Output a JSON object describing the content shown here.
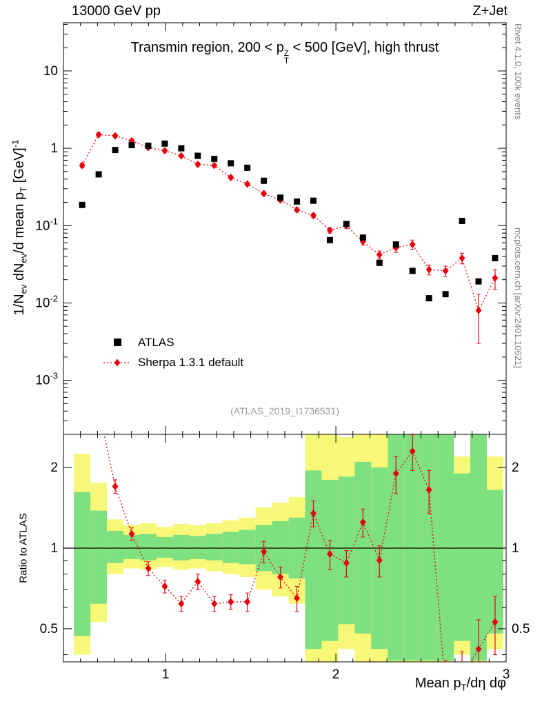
{
  "page": {
    "top_left": "13000 GeV pp",
    "top_right": "Z+Jet",
    "side_note_top": "Rivet 4.1.0, 100k events",
    "side_note_bottom": "mcplots.cern.ch [arXiv:2401.10621]",
    "watermark": "(ATLAS_2019_I1736531)"
  },
  "title": {
    "part1": "Transmin region, 200 < p",
    "sup": "Z",
    "sub": "T",
    "part2": " < 500 [GeV], high thrust"
  },
  "legend": {
    "atlas_label": "ATLAS",
    "sherpa_label": "Sherpa 1.3.1 default"
  },
  "axes": {
    "ylabel": {
      "p1": "1/N",
      "s1": "ev",
      "p2": " dN",
      "s2": "ev",
      "p3": "/d mean p",
      "s3": "T",
      "p4": " [GeV]",
      "s4": "-1"
    },
    "ratio_ylabel": "Ratio to ATLAS",
    "xlabel": {
      "p1": "Mean p",
      "s1": "T",
      "p2": "/dη dφ"
    }
  },
  "chart_data": {
    "type": "scatter",
    "title": "Transmin region, 200 < pT^Z < 500 [GeV], high thrust",
    "x": [
      0.51,
      0.607,
      0.704,
      0.801,
      0.898,
      0.995,
      1.092,
      1.189,
      1.286,
      1.383,
      1.48,
      1.577,
      1.674,
      1.771,
      1.868,
      1.965,
      2.062,
      2.159,
      2.256,
      2.353,
      2.45,
      2.547,
      2.644,
      2.741,
      2.838,
      2.935
    ],
    "series": [
      {
        "name": "ATLAS",
        "marker": "square",
        "color": "#000000",
        "values": [
          0.185,
          0.46,
          0.95,
          1.1,
          1.08,
          1.15,
          1.0,
          0.8,
          0.73,
          0.64,
          0.56,
          0.38,
          0.23,
          0.205,
          0.21,
          0.065,
          0.105,
          0.07,
          0.033,
          0.057,
          0.026,
          0.0115,
          0.013,
          0.115,
          0.019,
          0.038
        ]
      },
      {
        "name": "Sherpa 1.3.1 default",
        "marker": "diamond",
        "line": "dotted",
        "color": "#e8000d",
        "values": [
          0.6,
          1.5,
          1.45,
          1.25,
          1.02,
          0.93,
          0.8,
          0.62,
          0.6,
          0.42,
          0.345,
          0.26,
          0.215,
          0.16,
          0.135,
          0.087,
          0.1,
          0.062,
          0.042,
          0.052,
          0.057,
          0.027,
          0.026,
          0.038,
          0.008,
          0.021
        ],
        "yerr": [
          0.04,
          0.08,
          0.07,
          0.06,
          0.05,
          0.045,
          0.04,
          0.032,
          0.03,
          0.022,
          0.018,
          0.014,
          0.012,
          0.01,
          0.009,
          0.007,
          0.008,
          0.006,
          0.005,
          0.007,
          0.008,
          0.004,
          0.004,
          0.006,
          0.005,
          0.006
        ]
      }
    ],
    "main_axis": {
      "xmin": 0.4,
      "xmax": 3.0,
      "ymin": 0.0002,
      "ymax": 42,
      "yscale": "log",
      "grid": false,
      "xticks": [
        {
          "v": 1,
          "label": "1"
        },
        {
          "v": 2,
          "label": "2"
        },
        {
          "v": 3,
          "label": "3"
        }
      ],
      "yticks": [
        {
          "v": 10,
          "label": "10"
        },
        {
          "v": 1,
          "label": "1"
        },
        {
          "v": 0.1,
          "label": "10^-1"
        },
        {
          "v": 0.01,
          "label": "10^-2"
        },
        {
          "v": 0.001,
          "label": "10^-3"
        }
      ]
    },
    "ratio_axis": {
      "ymin": 0.376,
      "ymax": 2.66,
      "yscale": "log",
      "yticks": [
        {
          "v": 0.5,
          "label": "0.5"
        },
        {
          "v": 1,
          "label": "1"
        },
        {
          "v": 2,
          "label": "2"
        }
      ],
      "minor": [
        0.4,
        0.6,
        0.7,
        0.8,
        0.9
      ]
    },
    "ratio": {
      "label": "Ratio to ATLAS",
      "ref_line": 1,
      "values": [
        3.2,
        3.3,
        1.7,
        1.13,
        0.84,
        0.72,
        0.62,
        0.75,
        0.62,
        0.63,
        0.63,
        0.97,
        0.78,
        0.65,
        1.35,
        0.95,
        0.88,
        1.25,
        0.9,
        1.9,
        2.3,
        1.65,
        0.3,
        0.33,
        0.42,
        0.53
      ],
      "yerr": [
        0.5,
        0.5,
        0.1,
        0.06,
        0.05,
        0.04,
        0.04,
        0.05,
        0.04,
        0.04,
        0.05,
        0.09,
        0.07,
        0.07,
        0.15,
        0.12,
        0.1,
        0.15,
        0.12,
        0.3,
        0.35,
        0.3,
        0.08,
        0.08,
        0.12,
        0.13
      ],
      "bin_halfwidth": 0.0485,
      "bands": {
        "yellow": [
          [
            0.4,
            2.25
          ],
          [
            0.53,
            1.75
          ],
          [
            0.8,
            1.28
          ],
          [
            0.84,
            1.22
          ],
          [
            0.83,
            1.24
          ],
          [
            0.85,
            1.2
          ],
          [
            0.83,
            1.23
          ],
          [
            0.84,
            1.22
          ],
          [
            0.82,
            1.24
          ],
          [
            0.8,
            1.27
          ],
          [
            0.78,
            1.3
          ],
          [
            0.7,
            1.42
          ],
          [
            0.66,
            1.48
          ],
          [
            0.62,
            1.55
          ],
          [
            0.37,
            2.7
          ],
          [
            0.37,
            2.7
          ],
          [
            0.42,
            2.6
          ],
          [
            0.37,
            2.7
          ],
          [
            0.37,
            2.7
          ],
          [
            0.35,
            2.7
          ],
          [
            0.35,
            2.7
          ],
          [
            0.35,
            2.7
          ],
          [
            0.35,
            2.7
          ],
          [
            0.4,
            2.2
          ],
          [
            0.35,
            2.7
          ],
          [
            0.42,
            2.2
          ]
        ],
        "green": [
          [
            0.47,
            1.62
          ],
          [
            0.62,
            1.38
          ],
          [
            0.88,
            1.16
          ],
          [
            0.91,
            1.12
          ],
          [
            0.9,
            1.13
          ],
          [
            0.92,
            1.1
          ],
          [
            0.9,
            1.12
          ],
          [
            0.91,
            1.11
          ],
          [
            0.9,
            1.13
          ],
          [
            0.88,
            1.15
          ],
          [
            0.87,
            1.17
          ],
          [
            0.82,
            1.22
          ],
          [
            0.8,
            1.26
          ],
          [
            0.77,
            1.3
          ],
          [
            0.42,
            1.95
          ],
          [
            0.45,
            1.8
          ],
          [
            0.52,
            1.85
          ],
          [
            0.48,
            2.1
          ],
          [
            0.42,
            2.0
          ],
          [
            0.38,
            2.7
          ],
          [
            0.38,
            2.7
          ],
          [
            0.38,
            2.7
          ],
          [
            0.38,
            2.7
          ],
          [
            0.45,
            1.9
          ],
          [
            0.38,
            2.7
          ],
          [
            0.48,
            1.65
          ]
        ]
      }
    },
    "colors": {
      "atlas": "#000000",
      "sherpa": "#e8000d",
      "band_outer": "#f8f878",
      "band_inner": "#7fe07f"
    }
  }
}
